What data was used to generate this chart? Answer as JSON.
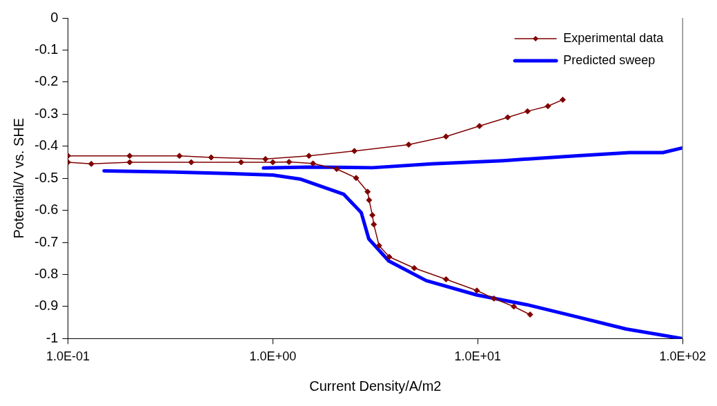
{
  "chart_data": {
    "type": "line",
    "xlabel": "Current Density/A/m2",
    "ylabel": "Potential/V vs. SHE",
    "log": "x",
    "xlim": [
      0.1,
      100
    ],
    "ylim": [
      -1,
      0
    ],
    "xticks": [
      {
        "value": 0.1,
        "label": "1.0E-01"
      },
      {
        "value": 1,
        "label": "1.0E+00"
      },
      {
        "value": 10,
        "label": "1.0E+01"
      },
      {
        "value": 100,
        "label": "1.0E+02"
      }
    ],
    "yticks": [
      0,
      -0.1,
      -0.2,
      -0.3,
      -0.4,
      -0.5,
      -0.6,
      -0.7,
      -0.8,
      -0.9,
      -1
    ],
    "grid": false,
    "legend": "top right",
    "series": [
      {
        "name": "Experimental data",
        "color": "#800000",
        "marker": "diamond",
        "x": [
          18,
          15,
          12,
          9.9,
          7,
          4.9,
          3.7,
          3.3,
          3.11,
          3.06,
          2.95,
          2.9,
          2.55,
          2.05,
          1.57,
          1.2,
          1,
          0.7,
          0.4,
          0.2,
          0.13,
          0.1,
          null,
          0.1,
          0.2,
          0.35,
          0.5,
          0.92,
          1.5,
          2.5,
          4.6,
          7,
          10.2,
          14,
          17.5,
          22,
          26
        ],
        "values": [
          -0.925,
          -0.9,
          -0.875,
          -0.85,
          -0.815,
          -0.78,
          -0.745,
          -0.71,
          -0.644,
          -0.615,
          -0.568,
          -0.542,
          -0.499,
          -0.471,
          -0.454,
          -0.449,
          -0.45,
          -0.45,
          -0.45,
          -0.45,
          -0.455,
          -0.45,
          null,
          -0.43,
          -0.43,
          -0.43,
          -0.435,
          -0.44,
          -0.43,
          -0.415,
          -0.395,
          -0.37,
          -0.337,
          -0.31,
          -0.291,
          -0.275,
          -0.255
        ]
      },
      {
        "name": "Predicted sweep",
        "color": "#0000ff",
        "marker": "none",
        "x": [
          100,
          53,
          30,
          17.3,
          9.9,
          5.6,
          3.68,
          2.94,
          2.7,
          2.22,
          1.37,
          1,
          0.6,
          0.3,
          0.15,
          null,
          0.9,
          1.5,
          3.06,
          6,
          13.3,
          30,
          55,
          80,
          100
        ],
        "values": [
          -1,
          -0.97,
          -0.931,
          -0.894,
          -0.864,
          -0.819,
          -0.758,
          -0.689,
          -0.607,
          -0.55,
          -0.503,
          -0.49,
          -0.485,
          -0.48,
          -0.477,
          null,
          -0.468,
          -0.465,
          -0.467,
          -0.455,
          -0.445,
          -0.43,
          -0.42,
          -0.42,
          -0.405
        ]
      }
    ]
  }
}
